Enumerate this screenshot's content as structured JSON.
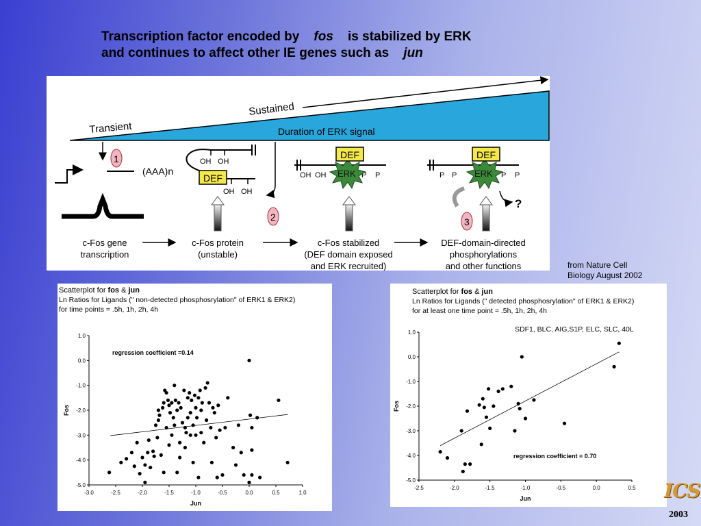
{
  "title": {
    "line1_a": "Transcription factor encoded by",
    "line1_b": "fos",
    "line1_c": "is stabilized by ERK",
    "line2_a": "and continues to affect other IE genes such as",
    "line2_b": "jun"
  },
  "diagram": {
    "sustained": "Sustained",
    "transient": "Transient",
    "duration": "Duration of ERK signal",
    "step1": "1",
    "step2": "2",
    "step3": "3",
    "aaa": "(AAA)n",
    "oh": "OH",
    "p": "P",
    "def": "DEF",
    "erk": "ERK",
    "question": "?",
    "stage1_l1": "c-Fos gene",
    "stage1_l2": "transcription",
    "stage2_l1": "c-Fos protein",
    "stage2_l2": "(unstable)",
    "stage3_l1": "c-Fos stabilized",
    "stage3_l2": "(DEF domain exposed",
    "stage3_l3": "and ERK recruited)",
    "stage4_l1": "DEF-domain-directed",
    "stage4_l2": "phosphorylations",
    "stage4_l3": "and other functions",
    "colors": {
      "band": "#29a7dd",
      "def_box": "#f4e84a",
      "erk": "#3a8a3a",
      "step_circle": "#f2b5c4"
    }
  },
  "credit": {
    "line1": "from Nature Cell",
    "line2": "Biology   August 2002"
  },
  "plot1": {
    "h1": "Scatterplot for ",
    "h1_fos": "fos",
    "h1_amp": " & ",
    "h1_jun": "jun",
    "h2": "Ln Ratios for Ligands (\" non-detected phosphosrylation\" of ERK1 & ERK2)",
    "h3": " for time points = .5h, 1h, 2h, 4h",
    "annotation": "regression coefficient =0.14"
  },
  "plot2": {
    "h1": "Scatterplot for ",
    "h1_fos": "fos",
    "h1_amp": " & ",
    "h1_jun": "jun",
    "h2": "Ln Ratios for Ligands (\" detected phosphosrylation\" of ERK1 & ERK2)",
    "h3": " for at least one time point = .5h, 1h, 2h, 4h",
    "subtitle": "SDF1, BLC, AIG,S1P, ELC, SLC, 40L",
    "annotation": "regression coefficient = 0.70"
  },
  "logo": "ICS",
  "year": "2003",
  "chart_data": [
    {
      "type": "scatter",
      "xlabel": "Jun",
      "ylabel": "Fos",
      "xlim": [
        -3.0,
        1.0
      ],
      "ylim": [
        -5.0,
        1.0
      ],
      "xticks": [
        "-3.0",
        "-2.5",
        "-2.0",
        "-1.5",
        "-1.0",
        "-0.5",
        "0.0",
        "0.5",
        "1.0"
      ],
      "yticks": [
        "1.0",
        "0.0",
        "-1.0",
        "-2.0",
        "-3.0",
        "-4.0",
        "-5.0"
      ],
      "regression": {
        "x": [
          -2.6,
          0.72
        ],
        "y": [
          -3.02,
          -2.17
        ]
      },
      "points": [
        [
          -2.62,
          -4.5
        ],
        [
          -2.4,
          -4.1
        ],
        [
          -2.3,
          -3.95
        ],
        [
          -2.2,
          -3.7
        ],
        [
          -2.15,
          -4.25
        ],
        [
          -2.1,
          -3.3
        ],
        [
          -2.05,
          -4.55
        ],
        [
          -2.0,
          -3.9
        ],
        [
          -1.95,
          -4.2
        ],
        [
          -1.95,
          -4.9
        ],
        [
          -1.9,
          -3.7
        ],
        [
          -1.88,
          -3.2
        ],
        [
          -1.85,
          -4.3
        ],
        [
          -1.8,
          -3.65
        ],
        [
          -1.78,
          -3.85
        ],
        [
          -1.75,
          -2.6
        ],
        [
          -1.72,
          -3.1
        ],
        [
          -1.7,
          -2.4
        ],
        [
          -1.7,
          -2.0
        ],
        [
          -1.68,
          -2.2
        ],
        [
          -1.65,
          -3.8
        ],
        [
          -1.62,
          -1.9
        ],
        [
          -1.6,
          -1.7
        ],
        [
          -1.6,
          -4.5
        ],
        [
          -1.58,
          -1.2
        ],
        [
          -1.55,
          -1.3
        ],
        [
          -1.55,
          -2.7
        ],
        [
          -1.52,
          -1.6
        ],
        [
          -1.5,
          -1.8
        ],
        [
          -1.5,
          -3.4
        ],
        [
          -1.48,
          -2.1
        ],
        [
          -1.45,
          -1.7
        ],
        [
          -1.45,
          -3.0
        ],
        [
          -1.42,
          -2.3
        ],
        [
          -1.4,
          -1.0
        ],
        [
          -1.4,
          -2.6
        ],
        [
          -1.38,
          -1.6
        ],
        [
          -1.35,
          -2.0
        ],
        [
          -1.35,
          -4.5
        ],
        [
          -1.32,
          -1.7
        ],
        [
          -1.3,
          -3.3
        ],
        [
          -1.3,
          -3.9
        ],
        [
          -1.28,
          -1.9
        ],
        [
          -1.25,
          -2.5
        ],
        [
          -1.22,
          -1.2
        ],
        [
          -1.2,
          -2.7
        ],
        [
          -1.2,
          -3.5
        ],
        [
          -1.18,
          -2.9
        ],
        [
          -1.15,
          -1.5
        ],
        [
          -1.15,
          -2.3
        ],
        [
          -1.12,
          -1.3
        ],
        [
          -1.1,
          -2.1
        ],
        [
          -1.1,
          -3.0
        ],
        [
          -1.08,
          -1.6
        ],
        [
          -1.05,
          -2.6
        ],
        [
          -1.05,
          -4.1
        ],
        [
          -1.02,
          -1.4
        ],
        [
          -1.0,
          -1.9
        ],
        [
          -1.0,
          -3.0
        ],
        [
          -0.98,
          -2.3
        ],
        [
          -0.95,
          -1.5
        ],
        [
          -0.95,
          -4.7
        ],
        [
          -0.92,
          -1.2
        ],
        [
          -0.9,
          -2.0
        ],
        [
          -0.9,
          -2.9
        ],
        [
          -0.88,
          -1.7
        ],
        [
          -0.85,
          -3.3
        ],
        [
          -0.82,
          -1.1
        ],
        [
          -0.8,
          -2.4
        ],
        [
          -0.78,
          -0.9
        ],
        [
          -0.75,
          -1.7
        ],
        [
          -0.72,
          -2.7
        ],
        [
          -0.7,
          -4.1
        ],
        [
          -0.68,
          -1.9
        ],
        [
          -0.65,
          -2.1
        ],
        [
          -0.62,
          -3.1
        ],
        [
          -0.6,
          -4.7
        ],
        [
          -0.58,
          -1.8
        ],
        [
          -0.55,
          -2.8
        ],
        [
          -0.5,
          -4.6
        ],
        [
          -0.45,
          -2.7
        ],
        [
          -0.4,
          -1.5
        ],
        [
          -0.3,
          -3.5
        ],
        [
          -0.25,
          -4.2
        ],
        [
          -0.2,
          -2.6
        ],
        [
          -0.15,
          -3.7
        ],
        [
          -0.1,
          -4.6
        ],
        [
          0.0,
          0.0
        ],
        [
          0.02,
          -2.2
        ],
        [
          0.05,
          -2.7
        ],
        [
          0.05,
          -3.6
        ],
        [
          0.05,
          -4.6
        ],
        [
          0.0,
          -4.9
        ],
        [
          0.15,
          -2.3
        ],
        [
          0.2,
          -4.7
        ],
        [
          0.55,
          -1.6
        ],
        [
          0.72,
          -4.1
        ]
      ]
    },
    {
      "type": "scatter",
      "xlabel": "Jun",
      "ylabel": "Fos",
      "xlim": [
        -2.5,
        0.5
      ],
      "ylim": [
        -5.0,
        1.0
      ],
      "xticks": [
        "-2.5",
        "-2.0",
        "-1.5",
        "-1.0",
        "-0.5",
        "0.0",
        "0.5"
      ],
      "yticks": [
        "1.0",
        "0.0",
        "-1.0",
        "-2.0",
        "-3.0",
        "-4.0",
        "-5.0"
      ],
      "regression": {
        "x": [
          -2.2,
          0.32
        ],
        "y": [
          -3.6,
          0.2
        ]
      },
      "points": [
        [
          -2.2,
          -3.85
        ],
        [
          -2.1,
          -4.1
        ],
        [
          -1.9,
          -3.0
        ],
        [
          -1.88,
          -4.65
        ],
        [
          -1.85,
          -4.35
        ],
        [
          -1.82,
          -2.2
        ],
        [
          -1.78,
          -4.35
        ],
        [
          -1.65,
          -1.95
        ],
        [
          -1.62,
          -3.55
        ],
        [
          -1.6,
          -1.7
        ],
        [
          -1.58,
          -2.05
        ],
        [
          -1.55,
          -2.45
        ],
        [
          -1.52,
          -1.3
        ],
        [
          -1.5,
          -2.9
        ],
        [
          -1.45,
          -2.0
        ],
        [
          -1.38,
          -1.4
        ],
        [
          -1.32,
          -1.3
        ],
        [
          -1.2,
          -1.2
        ],
        [
          -1.15,
          -3.0
        ],
        [
          -1.1,
          -1.9
        ],
        [
          -1.08,
          -2.1
        ],
        [
          -1.05,
          0.0
        ],
        [
          -1.0,
          -2.5
        ],
        [
          -0.88,
          -1.75
        ],
        [
          -0.45,
          -2.7
        ],
        [
          0.25,
          -0.4
        ],
        [
          0.32,
          0.55
        ]
      ]
    }
  ]
}
